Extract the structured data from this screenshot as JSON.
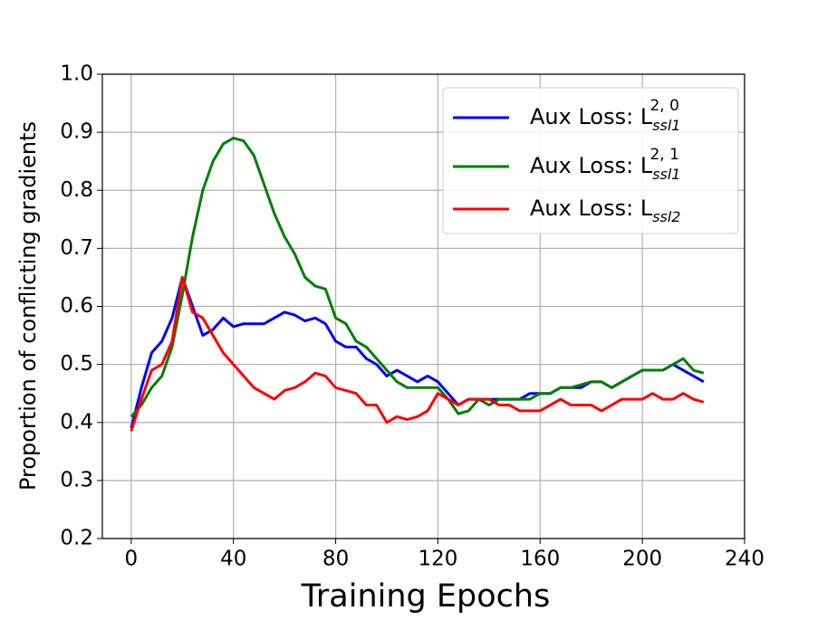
{
  "chart_data": {
    "type": "line",
    "x_label": "Training Epochs",
    "y_label": "Proportion of conflicting gradients",
    "x": [
      0,
      4,
      8,
      12,
      16,
      20,
      24,
      28,
      32,
      36,
      40,
      44,
      48,
      52,
      56,
      60,
      64,
      68,
      72,
      76,
      80,
      84,
      88,
      92,
      96,
      100,
      104,
      108,
      112,
      116,
      120,
      124,
      128,
      132,
      136,
      140,
      144,
      148,
      152,
      156,
      160,
      164,
      168,
      172,
      176,
      180,
      184,
      188,
      192,
      196,
      200,
      204,
      208,
      212,
      216,
      220,
      224
    ],
    "series": [
      {
        "name": "Aux Loss: L",
        "subscript": "ssl1",
        "superscript": "2, 0",
        "color": "#0000ff",
        "values": [
          0.39,
          0.46,
          0.52,
          0.54,
          0.58,
          0.65,
          0.6,
          0.55,
          0.56,
          0.58,
          0.565,
          0.57,
          0.57,
          0.57,
          0.58,
          0.59,
          0.585,
          0.575,
          0.58,
          0.57,
          0.54,
          0.53,
          0.53,
          0.51,
          0.5,
          0.48,
          0.49,
          0.48,
          0.47,
          0.48,
          0.47,
          0.45,
          0.43,
          0.44,
          0.44,
          0.44,
          0.44,
          0.44,
          0.44,
          0.45,
          0.45,
          0.45,
          0.46,
          0.46,
          0.46,
          0.47,
          0.47,
          0.46,
          0.47,
          0.48,
          0.49,
          0.49,
          0.49,
          0.5,
          0.49,
          0.48,
          0.47
        ]
      },
      {
        "name": "Aux Loss: L",
        "subscript": "ssl1",
        "superscript": "2, 1",
        "color": "#008000",
        "values": [
          0.41,
          0.43,
          0.46,
          0.48,
          0.53,
          0.62,
          0.72,
          0.8,
          0.85,
          0.88,
          0.89,
          0.885,
          0.86,
          0.81,
          0.76,
          0.72,
          0.69,
          0.65,
          0.635,
          0.63,
          0.58,
          0.57,
          0.54,
          0.53,
          0.51,
          0.49,
          0.47,
          0.46,
          0.46,
          0.46,
          0.46,
          0.44,
          0.415,
          0.42,
          0.44,
          0.43,
          0.44,
          0.44,
          0.44,
          0.44,
          0.45,
          0.45,
          0.46,
          0.46,
          0.465,
          0.47,
          0.47,
          0.46,
          0.47,
          0.48,
          0.49,
          0.49,
          0.49,
          0.5,
          0.51,
          0.49,
          0.485
        ]
      },
      {
        "name": "Aux Loss: L",
        "subscript": "ssl2",
        "color": "#ff0000",
        "values": [
          0.385,
          0.44,
          0.49,
          0.5,
          0.54,
          0.65,
          0.59,
          0.58,
          0.55,
          0.52,
          0.5,
          0.48,
          0.46,
          0.45,
          0.44,
          0.455,
          0.46,
          0.47,
          0.485,
          0.48,
          0.46,
          0.455,
          0.45,
          0.43,
          0.43,
          0.4,
          0.41,
          0.405,
          0.41,
          0.42,
          0.45,
          0.44,
          0.43,
          0.44,
          0.44,
          0.44,
          0.43,
          0.43,
          0.42,
          0.42,
          0.42,
          0.43,
          0.44,
          0.43,
          0.43,
          0.43,
          0.42,
          0.43,
          0.44,
          0.44,
          0.44,
          0.45,
          0.44,
          0.44,
          0.45,
          0.44,
          0.435
        ]
      }
    ],
    "xlim": [
      -11.3,
      240
    ],
    "xticks": [
      0,
      40,
      80,
      120,
      160,
      200,
      240
    ],
    "ylim": [
      0.2,
      1.0
    ],
    "yticks": [
      0.2,
      0.3,
      0.4,
      0.5,
      0.6,
      0.7,
      0.8,
      0.9,
      {
        "value": 1,
        "label": "1.0"
      }
    ],
    "grid": true,
    "legend": "upper right"
  }
}
